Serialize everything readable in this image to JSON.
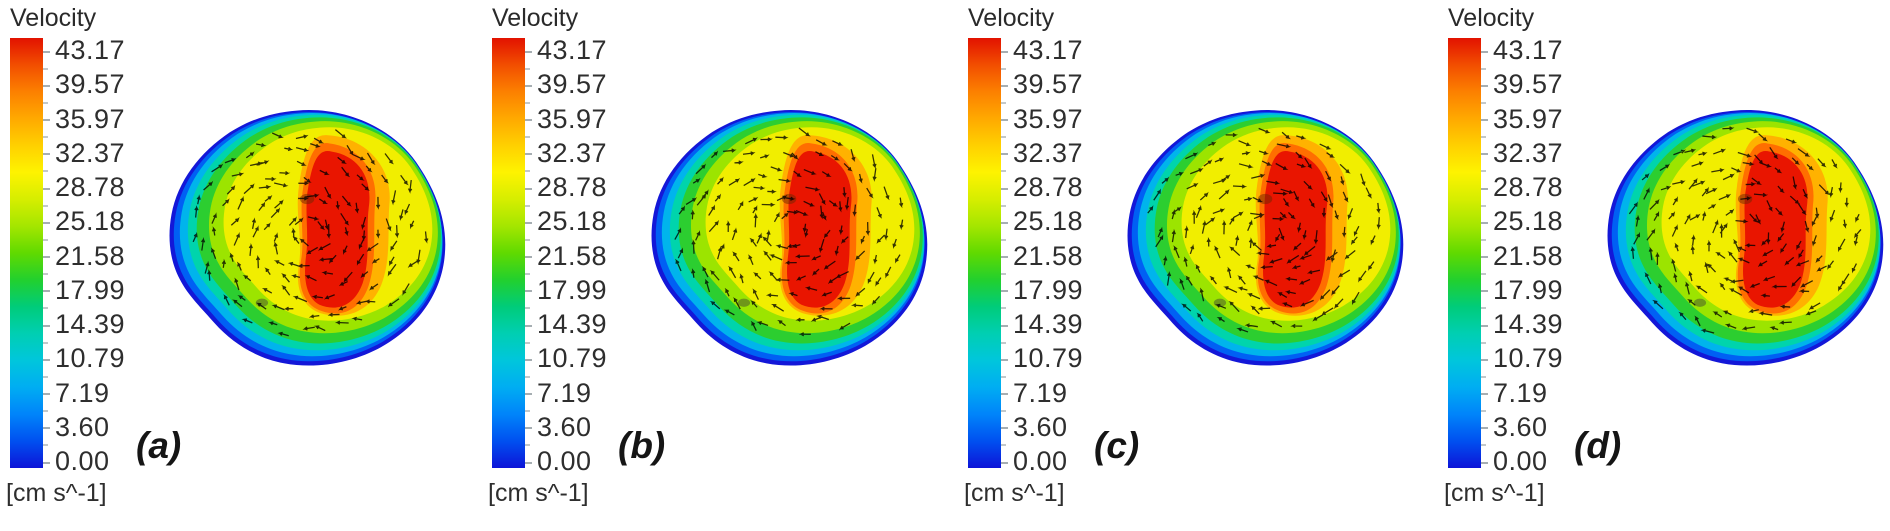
{
  "figure": {
    "panels": [
      {
        "id": "a",
        "label": "(a)"
      },
      {
        "id": "b",
        "label": "(b)"
      },
      {
        "id": "c",
        "label": "(c)"
      },
      {
        "id": "d",
        "label": "(d)"
      }
    ]
  },
  "colorbar": {
    "title": "Velocity",
    "unit": "[cm s^-1]",
    "ticks": [
      "43.17",
      "39.57",
      "35.97",
      "32.37",
      "28.78",
      "25.18",
      "21.58",
      "17.99",
      "14.39",
      "10.79",
      "7.19",
      "3.60",
      "0.00"
    ],
    "gradient_colors": [
      "#e21200",
      "#f24e00",
      "#fc8000",
      "#ffa900",
      "#ffd000",
      "#fef300",
      "#d6ee00",
      "#a4e600",
      "#60da00",
      "#22d02e",
      "#00cc7a",
      "#00cfb2",
      "#00c6dc",
      "#00adf2",
      "#0084fa",
      "#0050f0",
      "#0d14d8"
    ]
  },
  "chart_data": {
    "type": "heatmap",
    "title": "Velocity",
    "unit": "cm s^-1",
    "variable": "velocity magnitude contour with in-plane velocity vector arrows",
    "colormap": "rainbow (red = max, blue = min)",
    "legend_position": "left of each panel",
    "vmin": 0.0,
    "vmax": 43.17,
    "colorbar_ticks": [
      43.17,
      39.57,
      35.97,
      32.37,
      28.78,
      25.18,
      21.58,
      17.99,
      14.39,
      10.79,
      7.19,
      3.6,
      0.0
    ],
    "panels": [
      {
        "label": "(a)",
        "peak_velocity": 43.17,
        "wall_velocity": 0.0,
        "pattern": "irregular circular cross-section; tall tilted red high-velocity core slightly right of centre, rainbow rings decreasing to blue (~0) at wall; swirling vector field"
      },
      {
        "label": "(b)",
        "peak_velocity": 43.17,
        "wall_velocity": 0.0,
        "pattern": "nearly identical velocity distribution to (a)"
      },
      {
        "label": "(c)",
        "peak_velocity": 43.17,
        "wall_velocity": 0.0,
        "pattern": "nearly identical velocity distribution to (a)"
      },
      {
        "label": "(d)",
        "peak_velocity": 43.17,
        "wall_velocity": 0.0,
        "pattern": "nearly identical velocity distribution to (a)"
      }
    ]
  }
}
